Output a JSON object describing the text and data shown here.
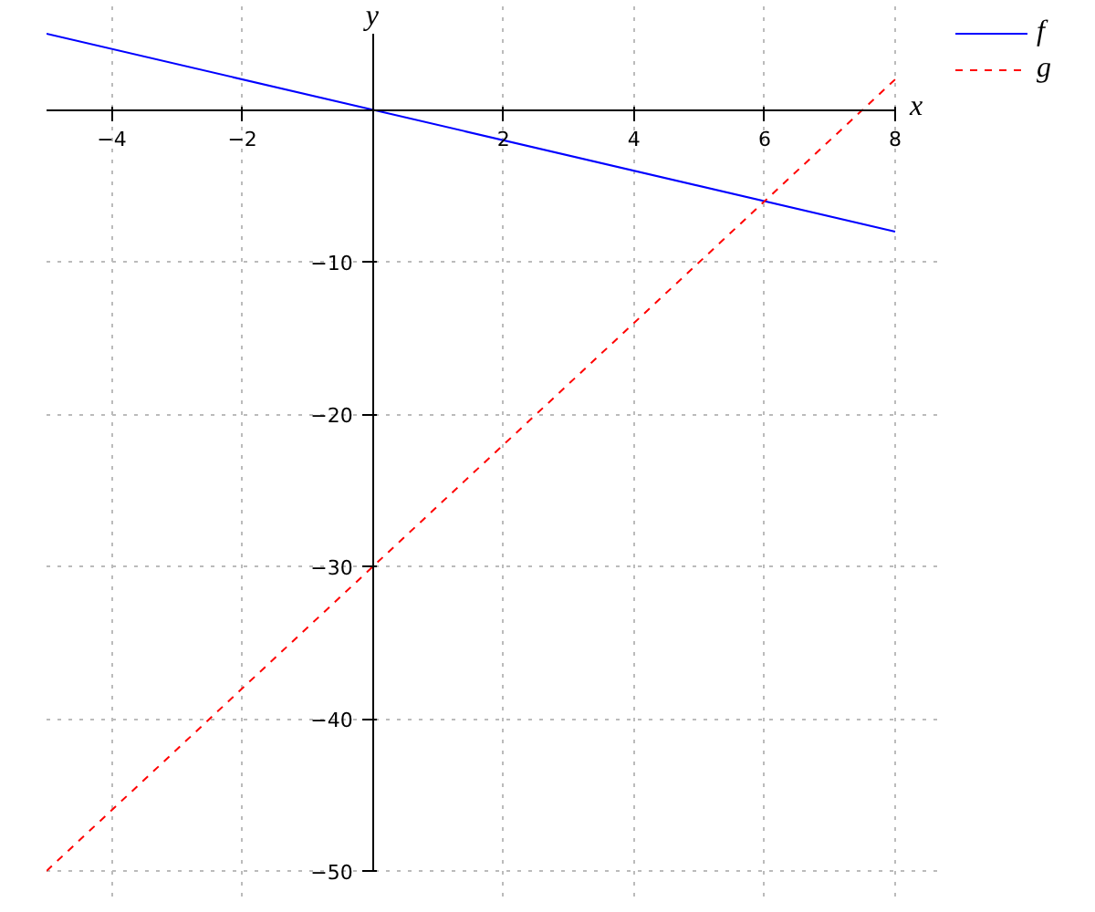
{
  "chart_data": {
    "type": "line",
    "xlabel": "x",
    "ylabel": "y",
    "xlim": [
      -5,
      8
    ],
    "ylim": [
      -50,
      5
    ],
    "xticks": [
      -4,
      -2,
      2,
      4,
      6,
      8
    ],
    "yticks": [
      -10,
      -20,
      -30,
      -40,
      -50
    ],
    "grid": true,
    "legend": "top right",
    "x": [
      -5,
      8
    ],
    "series": [
      {
        "name": "f",
        "color": "#0000ff",
        "values": [
          5,
          -8
        ],
        "line_style": "solid"
      },
      {
        "name": "g",
        "color": "#ff0000",
        "values": [
          -50,
          2
        ],
        "line_style": "dashed"
      }
    ]
  }
}
